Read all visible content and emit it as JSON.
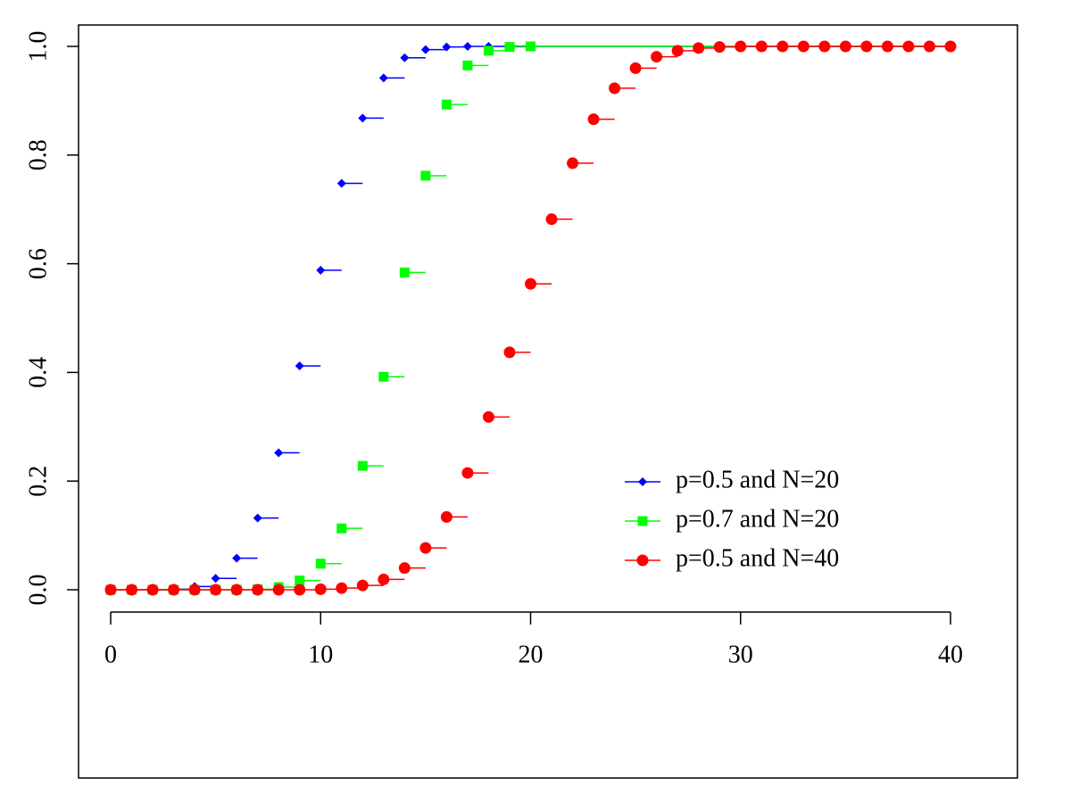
{
  "chart_data": {
    "type": "step",
    "xlim": [
      0,
      40
    ],
    "ylim": [
      0,
      1
    ],
    "xticks": [
      0,
      10,
      20,
      30,
      40
    ],
    "yticks": [
      {
        "value": 0,
        "label": "0.0"
      },
      {
        "value": 0.2,
        "label": "0.2"
      },
      {
        "value": 0.4,
        "label": "0.4"
      },
      {
        "value": 0.6,
        "label": "0.6"
      },
      {
        "value": 0.8,
        "label": "0.8"
      },
      {
        "value": 1,
        "label": "1.0"
      }
    ],
    "legend": "bottom-right",
    "series": [
      {
        "name": "p=0.5 and N=20",
        "color": "#0000ff",
        "marker": "diamond",
        "x": [
          0,
          1,
          2,
          3,
          4,
          5,
          6,
          7,
          8,
          9,
          10,
          11,
          12,
          13,
          14,
          15,
          16,
          17,
          18,
          19,
          20
        ],
        "values": [
          0,
          0,
          0,
          0.001,
          0.006,
          0.021,
          0.058,
          0.132,
          0.252,
          0.412,
          0.588,
          0.748,
          0.868,
          0.942,
          0.979,
          0.994,
          0.999,
          1,
          1,
          1,
          1
        ]
      },
      {
        "name": "p=0.7 and N=20",
        "color": "#00ff00",
        "marker": "square",
        "x": [
          0,
          1,
          2,
          3,
          4,
          5,
          6,
          7,
          8,
          9,
          10,
          11,
          12,
          13,
          14,
          15,
          16,
          17,
          18,
          19,
          20
        ],
        "values": [
          0,
          0,
          0,
          0,
          0,
          0,
          0,
          0.001,
          0.005,
          0.017,
          0.048,
          0.113,
          0.228,
          0.392,
          0.584,
          0.762,
          0.893,
          0.965,
          0.992,
          0.999,
          1
        ]
      },
      {
        "name": "p=0.5 and N=40",
        "color": "#ff0000",
        "marker": "circle",
        "x": [
          0,
          1,
          2,
          3,
          4,
          5,
          6,
          7,
          8,
          9,
          10,
          11,
          12,
          13,
          14,
          15,
          16,
          17,
          18,
          19,
          20,
          21,
          22,
          23,
          24,
          25,
          26,
          27,
          28,
          29,
          30,
          31,
          32,
          33,
          34,
          35,
          36,
          37,
          38,
          39,
          40
        ],
        "values": [
          0,
          0,
          0,
          0,
          0,
          0,
          0,
          0,
          0,
          0,
          0.001,
          0.003,
          0.008,
          0.019,
          0.04,
          0.077,
          0.134,
          0.215,
          0.318,
          0.437,
          0.563,
          0.682,
          0.785,
          0.866,
          0.923,
          0.96,
          0.981,
          0.992,
          0.997,
          0.999,
          1,
          1,
          1,
          1,
          1,
          1,
          1,
          1,
          1,
          1,
          1
        ]
      }
    ]
  }
}
